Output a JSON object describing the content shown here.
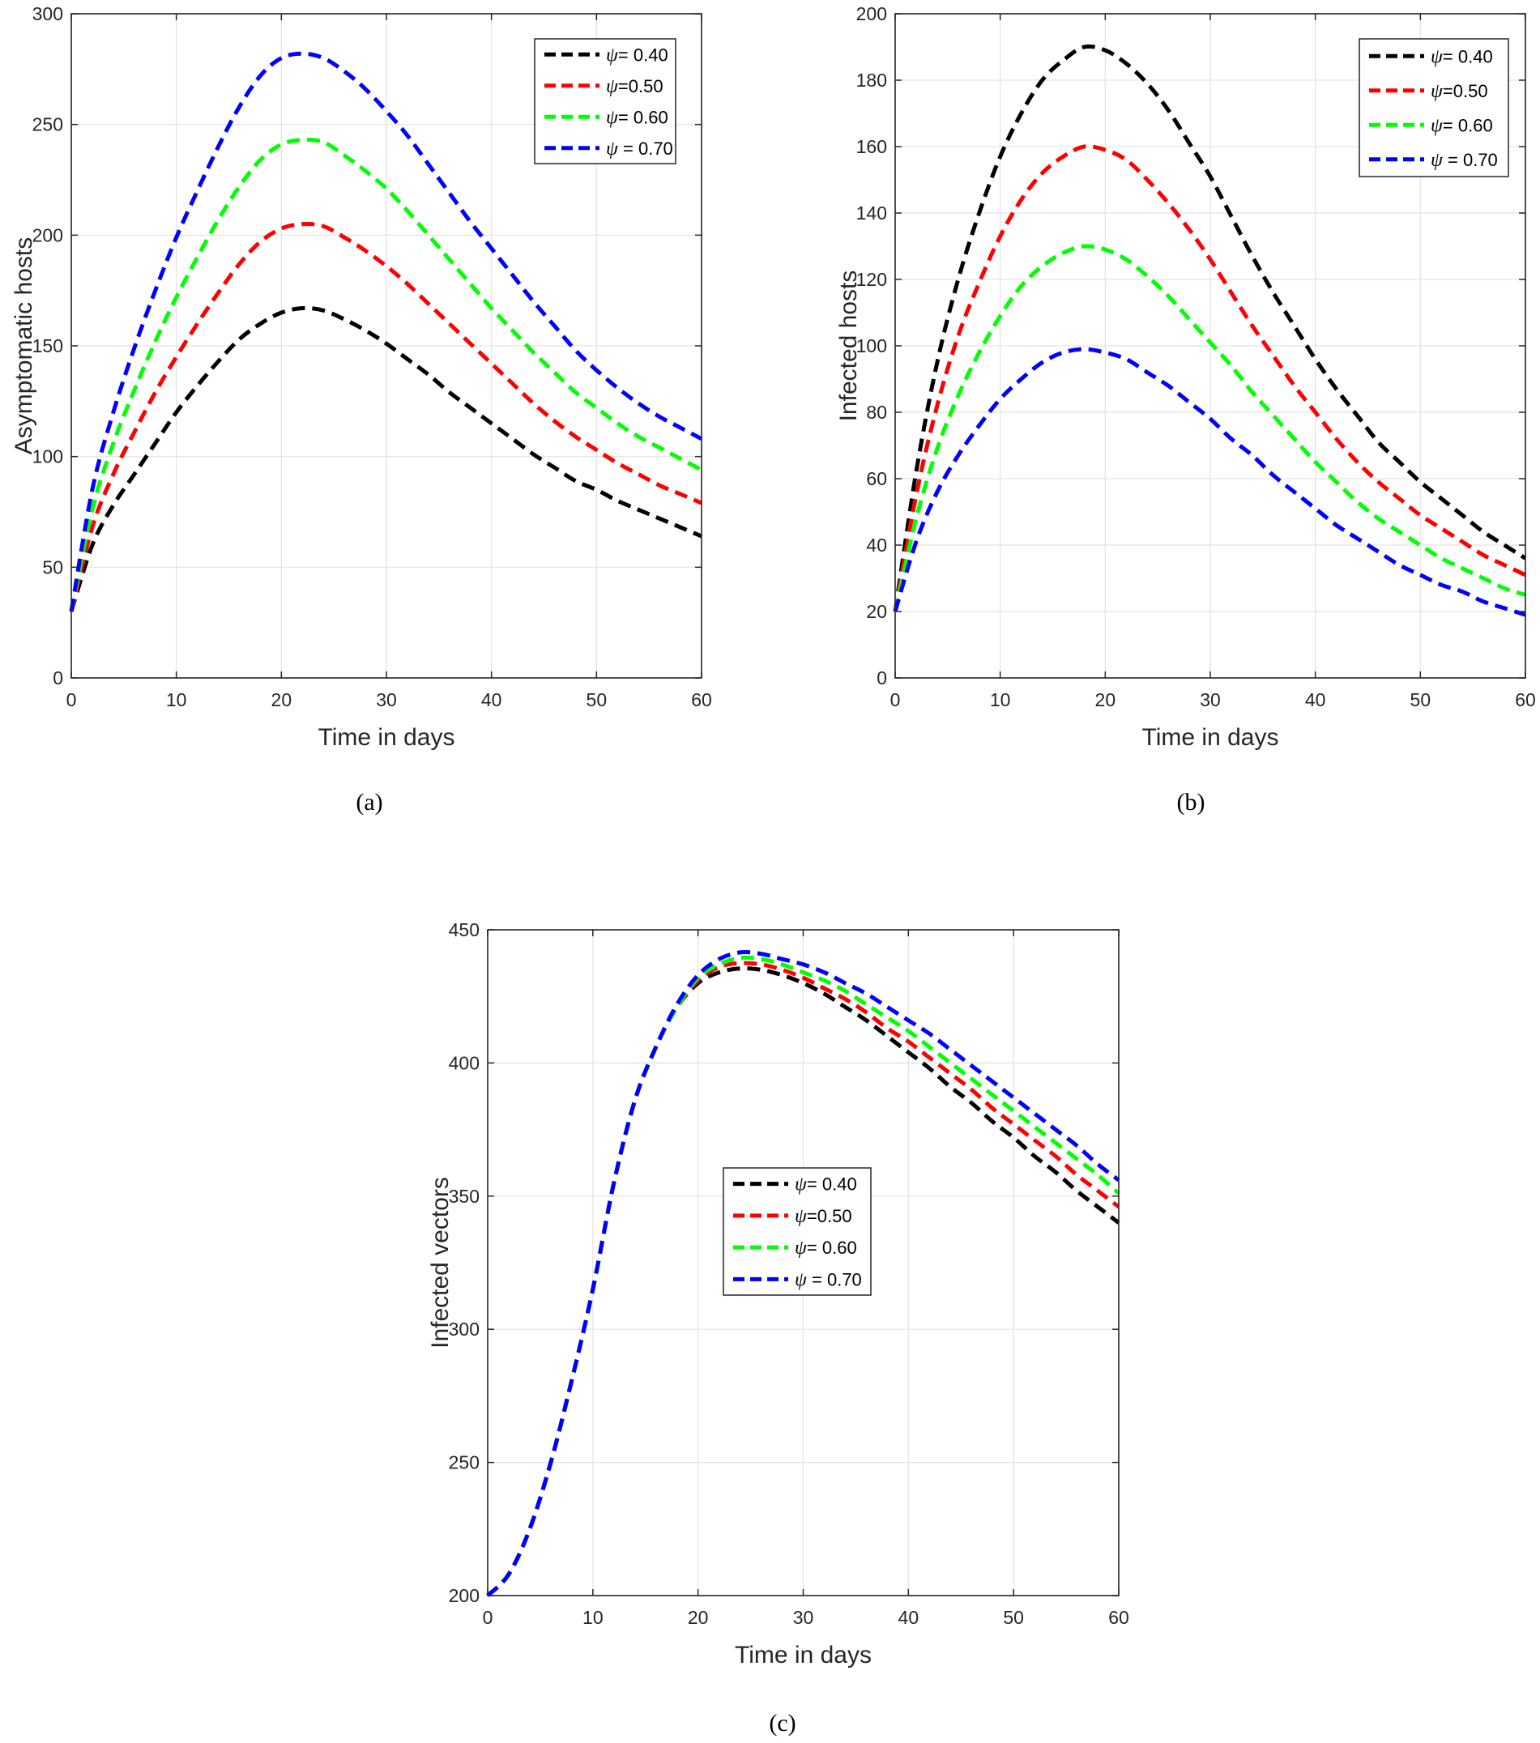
{
  "chart_data": [
    {
      "type": "line",
      "panel_label": "(a)",
      "xlabel": "Time in days",
      "ylabel": "Asymptomatic  hosts",
      "xlim": [
        0,
        60
      ],
      "ylim": [
        0,
        300
      ],
      "xticks": [
        "0",
        "10",
        "20",
        "30",
        "40",
        "50",
        "60"
      ],
      "yticks": [
        "0",
        "50",
        "100",
        "150",
        "200",
        "250",
        "300"
      ],
      "grid": true,
      "legend_position": "top-right",
      "x": [
        0,
        2,
        4,
        6,
        8,
        10,
        12,
        14,
        16,
        18,
        20,
        22,
        24,
        26,
        28,
        30,
        32,
        34,
        36,
        38,
        40,
        42,
        44,
        46,
        48,
        50,
        52,
        54,
        56,
        58,
        60
      ],
      "series": [
        {
          "name": "ψ= 0.40",
          "symbol": "ψ",
          "value_text": "= 0.40",
          "color": "#000000",
          "values": [
            30,
            60,
            78,
            92,
            106,
            120,
            132,
            143,
            153,
            160,
            165,
            167,
            166,
            162,
            157,
            151,
            144,
            137,
            129,
            122,
            115,
            108,
            101,
            95,
            89,
            85,
            80,
            76,
            72,
            68,
            64
          ]
        },
        {
          "name": "ψ=0.50",
          "symbol": "ψ",
          "value_text": "=0.50",
          "color": "#ff0000",
          "values": [
            30,
            68,
            92,
            111,
            129,
            145,
            160,
            174,
            187,
            197,
            203,
            205,
            204,
            199,
            193,
            186,
            178,
            169,
            160,
            151,
            142,
            133,
            124,
            116,
            109,
            103,
            97,
            92,
            87,
            83,
            79
          ]
        },
        {
          "name": "ψ= 0.60",
          "symbol": "ψ",
          "value_text": "= 0.60",
          "color": "#00ff00",
          "values": [
            30,
            76,
            106,
            130,
            152,
            172,
            190,
            207,
            222,
            234,
            241,
            243,
            242,
            236,
            229,
            221,
            211,
            200,
            189,
            178,
            167,
            157,
            147,
            138,
            129,
            122,
            115,
            109,
            104,
            99,
            94
          ]
        },
        {
          "name": "ψ = 0.70",
          "symbol": "ψ",
          "value_text": " = 0.70",
          "color": "#0000ff",
          "values": [
            30,
            85,
            120,
            149,
            175,
            199,
            220,
            240,
            258,
            272,
            280,
            282,
            280,
            274,
            266,
            256,
            245,
            232,
            219,
            206,
            194,
            182,
            170,
            159,
            148,
            139,
            131,
            124,
            118,
            113,
            108
          ]
        }
      ]
    },
    {
      "type": "line",
      "panel_label": "(b)",
      "xlabel": "Time in days",
      "ylabel": "Infected hosts",
      "xlim": [
        0,
        60
      ],
      "ylim": [
        0,
        200
      ],
      "xticks": [
        "0",
        "10",
        "20",
        "30",
        "40",
        "50",
        "60"
      ],
      "yticks": [
        "0",
        "20",
        "40",
        "60",
        "80",
        "100",
        "120",
        "140",
        "160",
        "180",
        "200"
      ],
      "grid": true,
      "legend_position": "top-right",
      "x": [
        0,
        2,
        4,
        6,
        8,
        10,
        12,
        14,
        16,
        18,
        20,
        22,
        24,
        26,
        28,
        30,
        32,
        34,
        36,
        38,
        40,
        42,
        44,
        46,
        48,
        50,
        52,
        54,
        56,
        58,
        60
      ],
      "series": [
        {
          "name": "ψ= 0.40",
          "symbol": "ψ",
          "value_text": "= 0.40",
          "color": "#000000",
          "values": [
            20,
            62,
            95,
            120,
            140,
            157,
            170,
            180,
            186,
            190,
            189,
            185,
            179,
            171,
            161,
            151,
            139,
            127,
            116,
            106,
            96,
            87,
            79,
            71,
            65,
            59,
            54,
            49,
            44,
            40,
            36
          ]
        },
        {
          "name": "ψ=0.50",
          "symbol": "ψ",
          "value_text": "=0.50",
          "color": "#ff0000",
          "values": [
            20,
            55,
            82,
            103,
            119,
            133,
            144,
            152,
            157,
            160,
            159,
            156,
            150,
            143,
            135,
            126,
            116,
            106,
            97,
            88,
            80,
            72,
            65,
            59,
            54,
            49,
            45,
            41,
            37,
            34,
            31
          ]
        },
        {
          "name": "ψ= 0.60",
          "symbol": "ψ",
          "value_text": "= 0.60",
          "color": "#00ff00",
          "values": [
            20,
            48,
            69,
            85,
            98,
            109,
            118,
            124,
            128,
            130,
            129,
            126,
            121,
            115,
            108,
            101,
            94,
            86,
            79,
            72,
            65,
            59,
            53,
            48,
            44,
            40,
            36,
            33,
            30,
            27,
            25
          ]
        },
        {
          "name": "ψ = 0.70",
          "symbol": "ψ",
          "value_text": " = 0.70",
          "color": "#0000ff",
          "values": [
            20,
            41,
            56,
            67,
            76,
            84,
            90,
            95,
            98,
            99,
            98,
            96,
            92,
            88,
            83,
            78,
            72,
            67,
            61,
            56,
            51,
            46,
            42,
            38,
            34,
            31,
            28,
            26,
            23,
            21,
            19
          ]
        }
      ]
    },
    {
      "type": "line",
      "panel_label": "(c)",
      "xlabel": "Time in days",
      "ylabel": "Infected vectors",
      "xlim": [
        0,
        60
      ],
      "ylim": [
        200,
        450
      ],
      "xticks": [
        "0",
        "10",
        "20",
        "30",
        "40",
        "50",
        "60"
      ],
      "yticks": [
        "200",
        "250",
        "300",
        "350",
        "400",
        "450"
      ],
      "grid": true,
      "legend_position": "center",
      "x": [
        0,
        2,
        4,
        6,
        8,
        10,
        12,
        14,
        16,
        18,
        20,
        22,
        24,
        26,
        28,
        30,
        32,
        34,
        36,
        38,
        40,
        42,
        44,
        46,
        48,
        50,
        52,
        54,
        56,
        58,
        60
      ],
      "series": [
        {
          "name": "ψ= 0.40",
          "symbol": "ψ",
          "value_text": "= 0.40",
          "color": "#000000",
          "values": [
            200,
            208,
            225,
            250,
            281,
            315,
            355,
            386,
            406,
            421,
            430,
            434,
            435.5,
            435,
            433,
            430,
            426,
            421,
            416,
            410,
            404,
            398,
            391,
            385,
            378,
            372,
            365,
            359,
            352,
            346,
            340
          ]
        },
        {
          "name": "ψ=0.50",
          "symbol": "ψ",
          "value_text": "=0.50",
          "color": "#ff0000",
          "values": [
            200,
            208,
            225,
            250,
            281,
            315,
            355,
            386,
            406,
            421,
            431,
            436,
            437.5,
            437,
            435,
            432,
            428,
            424,
            419,
            413,
            408,
            402,
            396,
            390,
            383,
            377,
            371,
            365,
            358,
            352,
            346
          ]
        },
        {
          "name": "ψ= 0.60",
          "symbol": "ψ",
          "value_text": "= 0.60",
          "color": "#00ff00",
          "values": [
            200,
            208,
            225,
            250,
            281,
            315,
            355,
            386,
            406,
            421,
            432,
            437,
            439.5,
            439,
            437,
            434,
            431,
            427,
            422,
            417,
            412,
            406,
            400,
            394,
            388,
            382,
            376,
            370,
            364,
            358,
            351
          ]
        },
        {
          "name": "ψ = 0.70",
          "symbol": "ψ",
          "value_text": " = 0.70",
          "color": "#0000ff",
          "values": [
            200,
            208,
            225,
            250,
            281,
            315,
            355,
            386,
            406,
            422,
            433,
            439,
            441.5,
            441,
            439,
            437,
            434,
            430,
            426,
            421,
            416,
            411,
            405,
            399,
            393,
            387,
            381,
            375,
            369,
            362,
            356
          ]
        }
      ]
    }
  ]
}
